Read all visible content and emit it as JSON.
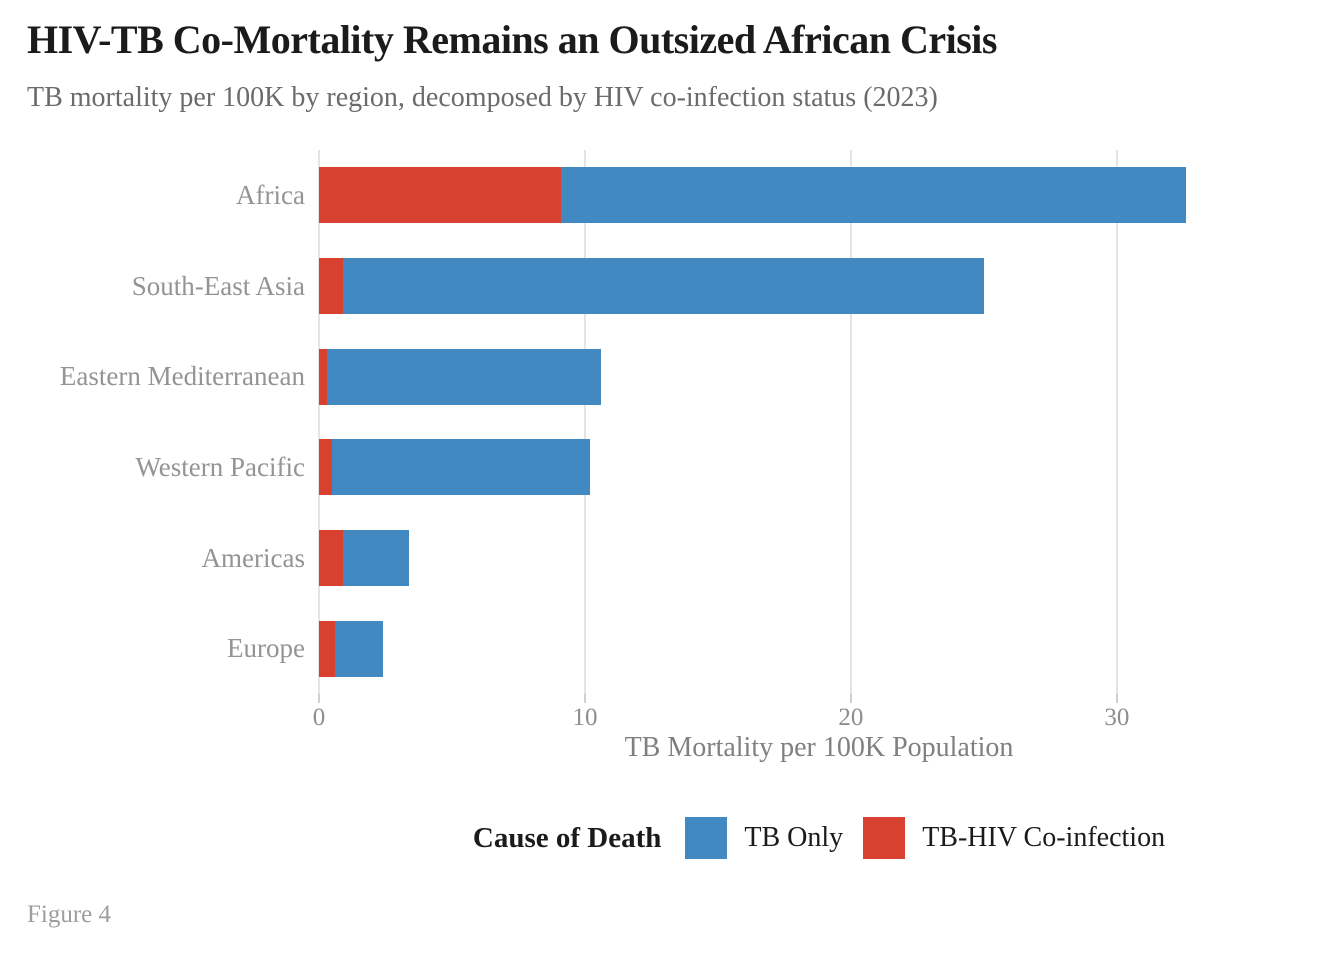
{
  "header": {
    "title": "HIV-TB Co-Mortality Remains an Outsized African Crisis",
    "subtitle": "TB mortality per 100K by region, decomposed by HIV co-infection status (2023)"
  },
  "chart_data": {
    "type": "bar",
    "orientation": "horizontal",
    "stacked": true,
    "title": "HIV-TB Co-Mortality Remains an Outsized African Crisis",
    "subtitle": "TB mortality per 100K by region, decomposed by HIV co-infection status (2023)",
    "categories": [
      "Africa",
      "South-East Asia",
      "Eastern Mediterranean",
      "Western Pacific",
      "Americas",
      "Europe"
    ],
    "series": [
      {
        "name": "TB-HIV Co-infection",
        "color": "#d8402f",
        "values": [
          9.1,
          0.9,
          0.3,
          0.5,
          0.9,
          0.6
        ]
      },
      {
        "name": "TB Only",
        "color": "#4189c0",
        "values": [
          23.5,
          24.1,
          10.3,
          9.7,
          2.5,
          1.8
        ]
      }
    ],
    "totals": [
      32.6,
      25.0,
      10.6,
      10.2,
      3.4,
      2.4
    ],
    "xlabel": "TB Mortality per 100K Population",
    "ylabel": "",
    "xlim": [
      0,
      37.6
    ],
    "x_ticks": [
      0,
      10,
      20,
      30
    ],
    "grid": "vertical-gridlines-only",
    "legend_position": "bottom-center"
  },
  "legend": {
    "title": "Cause of Death",
    "items": [
      {
        "label": "TB Only",
        "color": "#4189c0"
      },
      {
        "label": "TB-HIV Co-infection",
        "color": "#d8402f"
      }
    ]
  },
  "footer": {
    "caption": "Figure 4"
  },
  "colors": {
    "tb_only": "#4189c0",
    "tb_hiv": "#d8402f",
    "gridline": "#e4e4e4",
    "title_text": "#1b1b1b",
    "muted_text": "#949494"
  }
}
